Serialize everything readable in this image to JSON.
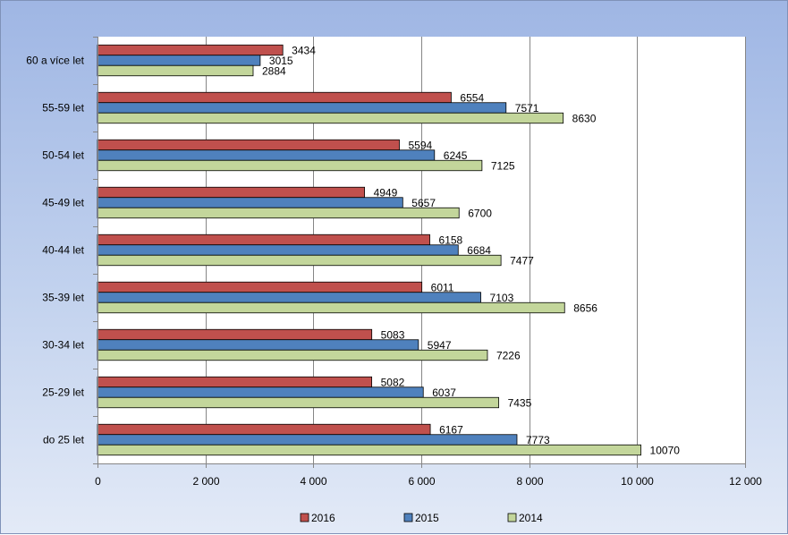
{
  "chart_data": {
    "type": "bar",
    "orientation": "horizontal",
    "title": "",
    "xlabel": "",
    "ylabel": "",
    "categories": [
      "60 a více let",
      "55-59 let",
      "50-54 let",
      "45-49 let",
      "40-44 let",
      "35-39 let",
      "30-34 let",
      "25-29 let",
      "do 25 let"
    ],
    "series": [
      {
        "name": "2016",
        "color": "#c0504d",
        "values": [
          3434,
          6554,
          5594,
          4949,
          6158,
          6011,
          5083,
          5082,
          6167
        ]
      },
      {
        "name": "2015",
        "color": "#4f81bd",
        "values": [
          3015,
          7571,
          6245,
          5657,
          6684,
          7103,
          5947,
          6037,
          7773
        ]
      },
      {
        "name": "2014",
        "color": "#c3d69b",
        "values": [
          2884,
          8630,
          7125,
          6700,
          7477,
          8656,
          7226,
          7435,
          10070
        ]
      }
    ],
    "xlim": [
      0,
      12000
    ],
    "xticks": [
      0,
      2000,
      4000,
      6000,
      8000,
      10000,
      12000
    ],
    "xtick_labels": [
      "0",
      "2 000",
      "4 000",
      "6 000",
      "8 000",
      "10 000",
      "12 000"
    ],
    "grid": "vertical",
    "legend_position": "bottom"
  }
}
